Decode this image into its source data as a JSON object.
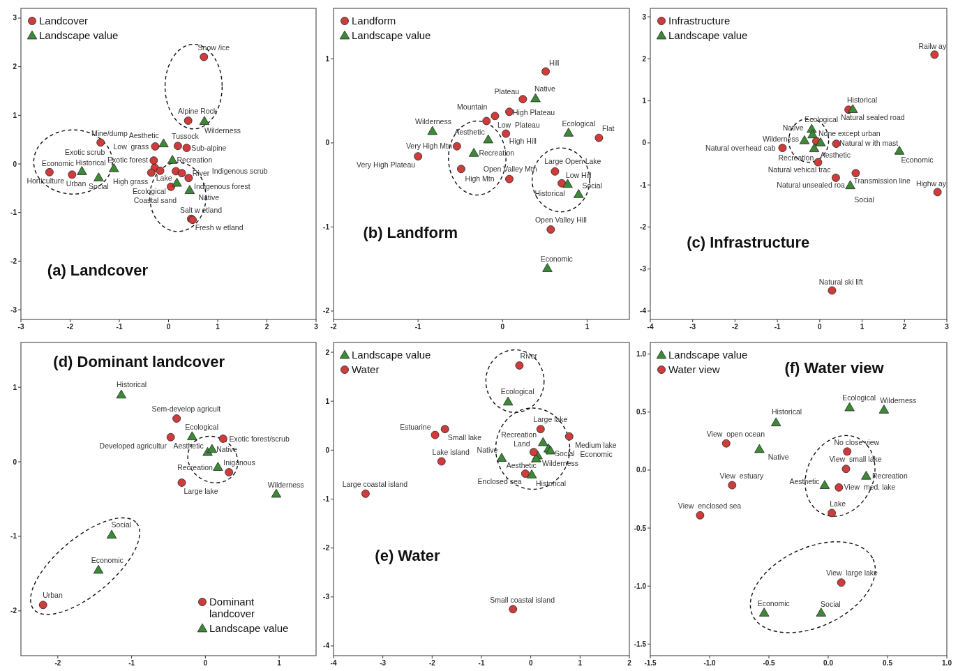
{
  "chart_data": [
    {
      "type": "scatter",
      "title": "(a) Landcover",
      "legend": "top left",
      "xlim": [
        -3,
        3
      ],
      "ylim": [
        -3.2,
        3.2
      ],
      "xticks": [
        -3,
        -2,
        -1,
        0,
        1,
        2,
        3
      ],
      "yticks": [
        -3,
        -2,
        -1,
        0,
        1,
        2,
        3
      ],
      "series": [
        {
          "name": "Landcover",
          "color": "#d03b3b",
          "marker": "circle",
          "x": [
            -2.42,
            -1.96,
            -1.38,
            -0.27,
            -0.3,
            0.19,
            0.37,
            0.72,
            0.4,
            -0.28,
            -0.35,
            -0.17,
            0.15,
            0.27,
            0.41,
            0.05,
            0.46,
            0.49
          ],
          "values": [
            -0.17,
            -0.22,
            0.44,
            0.36,
            0.07,
            0.37,
            0.33,
            2.2,
            0.89,
            -0.08,
            -0.18,
            -0.14,
            -0.15,
            -0.19,
            -0.29,
            -0.47,
            -1.13,
            -1.15
          ]
        },
        {
          "name": "Landscape value",
          "color": "#3c8a36",
          "marker": "triangle",
          "x": [
            -1.76,
            -1.42,
            -1.11,
            -0.1,
            0.08,
            0.17,
            0.43,
            0.73
          ],
          "values": [
            -0.15,
            -0.28,
            -0.09,
            0.42,
            0.08,
            -0.39,
            -0.54,
            0.88
          ]
        }
      ],
      "annotations": [
        {
          "text": "Snow /ice",
          "x": 0.72,
          "y": 2.2
        },
        {
          "text": "Alpine Rock",
          "x": 0.4,
          "y": 0.89
        },
        {
          "text": "Wilderness",
          "x": 0.73,
          "y": 0.88
        },
        {
          "text": "Mine/dump",
          "x": -1.38,
          "y": 0.44
        },
        {
          "text": "Aesthetic",
          "x": -0.1,
          "y": 0.42
        },
        {
          "text": "Tussock",
          "x": 0.19,
          "y": 0.37
        },
        {
          "text": "Low  grass",
          "x": -0.27,
          "y": 0.36
        },
        {
          "text": "Sub-alpine",
          "x": 0.37,
          "y": 0.33
        },
        "Exotic scrub",
        {
          "text": "Recreation",
          "x": 0.08,
          "y": 0.08
        },
        {
          "text": "Economic",
          "x": -1.76,
          "y": -0.15
        },
        {
          "text": "Historical",
          "x": -1.11,
          "y": -0.09
        },
        {
          "text": "Exotic forest",
          "x": -0.3,
          "y": 0.07
        },
        {
          "text": "River",
          "x": 0.27,
          "y": -0.19
        },
        "Indigenous scrub",
        {
          "text": "Horticulture",
          "x": -2.42,
          "y": -0.17
        },
        {
          "text": "Urban",
          "x": -1.96,
          "y": -0.22
        },
        {
          "text": "Social",
          "x": -1.42,
          "y": -0.28
        },
        {
          "text": "High grass",
          "x": -0.35,
          "y": -0.18
        },
        {
          "text": "Lake",
          "x": 0.15,
          "y": -0.15
        },
        "Indigenous forest",
        {
          "text": "Ecological",
          "x": 0.17,
          "y": -0.39
        },
        {
          "text": "Native",
          "x": 0.43,
          "y": -0.54
        },
        "Coastal sand",
        {
          "text": "Salt w etland",
          "x": 0.46,
          "y": -1.13
        },
        {
          "text": "Fresh w etland",
          "x": 0.49,
          "y": -1.15
        }
      ]
    },
    {
      "type": "scatter",
      "title": "(b) Landform",
      "legend": "top left",
      "xlim": [
        -2,
        1.5
      ],
      "ylim": [
        -2.1,
        1.6
      ],
      "xticks": [
        -2,
        -1,
        0,
        1
      ],
      "yticks": [
        -2,
        -1,
        0,
        1
      ],
      "series": [
        {
          "name": "Landform",
          "color": "#d03b3b",
          "marker": "circle",
          "x": [
            0.51,
            0.24,
            0.08,
            -0.19,
            -0.09,
            0.04,
            1.14,
            -0.54,
            -1.0,
            -0.49,
            0.08,
            0.62,
            0.7,
            0.57
          ],
          "values": [
            0.85,
            0.52,
            0.37,
            0.26,
            0.32,
            0.11,
            0.06,
            -0.04,
            -0.16,
            -0.31,
            -0.43,
            -0.34,
            -0.48,
            -1.03
          ]
        },
        {
          "name": "Landscape value",
          "color": "#3c8a36",
          "marker": "triangle",
          "x": [
            0.39,
            -0.83,
            -0.17,
            -0.34,
            0.78,
            0.77,
            0.9,
            0.53
          ],
          "values": [
            0.53,
            0.14,
            0.04,
            -0.12,
            0.12,
            -0.49,
            -0.61,
            -1.49
          ]
        }
      ],
      "annotations": [
        {
          "text": "Hill",
          "x": 0.51,
          "y": 0.85
        },
        {
          "text": "Plateau",
          "x": 0.24,
          "y": 0.52
        },
        {
          "text": "Native",
          "x": 0.39,
          "y": 0.53
        },
        {
          "text": "Mountain",
          "x": -0.19,
          "y": 0.26
        },
        {
          "text": "High Plateau",
          "x": 0.08,
          "y": 0.37
        },
        {
          "text": "Low  Plateau",
          "x": -0.09,
          "y": 0.32
        },
        {
          "text": "Wilderness",
          "x": -0.83,
          "y": 0.14
        },
        {
          "text": "Aesthetic",
          "x": -0.17,
          "y": 0.04
        },
        {
          "text": "Ecological",
          "x": 0.78,
          "y": 0.12
        },
        {
          "text": "Flat",
          "x": 1.14,
          "y": 0.06
        },
        {
          "text": "High Hill",
          "x": 0.04,
          "y": 0.11
        },
        {
          "text": "Very High Mtn",
          "x": -0.54,
          "y": -0.04
        },
        {
          "text": "Recreation",
          "x": -0.34,
          "y": -0.12
        },
        {
          "text": "Very High Plateau",
          "x": -1.0,
          "y": -0.16
        },
        {
          "text": "Open Valley Mtn",
          "x": 0.08,
          "y": -0.43
        },
        {
          "text": "High Mtn",
          "x": -0.49,
          "y": -0.31
        },
        {
          "text": "Large Open Lake",
          "x": 0.62,
          "y": -0.34
        },
        {
          "text": "Low Hill",
          "x": 0.7,
          "y": -0.48
        },
        {
          "text": "Social",
          "x": 0.9,
          "y": -0.61
        },
        {
          "text": "Historical",
          "x": 0.77,
          "y": -0.49
        },
        {
          "text": "Open Valley Hill",
          "x": 0.57,
          "y": -1.03
        },
        {
          "text": "Economic",
          "x": 0.53,
          "y": -1.49
        }
      ]
    },
    {
      "type": "scatter",
      "title": "(c) Infrastructure",
      "legend": "top left",
      "xlim": [
        -4,
        3
      ],
      "ylim": [
        -4.2,
        3.2
      ],
      "xticks": [
        -4,
        -3,
        -2,
        -1,
        0,
        1,
        2,
        3
      ],
      "yticks": [
        -4,
        -3,
        -2,
        -1,
        0,
        1,
        2,
        3
      ],
      "series": [
        {
          "name": "Infrastructure",
          "color": "#d03b3b",
          "marker": "circle",
          "x": [
            2.71,
            2.78,
            0.68,
            -0.08,
            0.39,
            -0.88,
            -0.04,
            0.38,
            0.85,
            0.29
          ],
          "values": [
            2.1,
            -1.17,
            0.79,
            0.04,
            -0.02,
            -0.12,
            -0.46,
            -0.83,
            -0.72,
            -3.51
          ]
        },
        {
          "name": "Landscape value",
          "color": "#3c8a36",
          "marker": "triangle",
          "x": [
            0.78,
            -0.19,
            -0.17,
            -0.36,
            0.02,
            -0.13,
            1.88,
            0.72
          ],
          "values": [
            0.8,
            0.33,
            0.2,
            0.06,
            0.01,
            -0.13,
            -0.19,
            -1.01
          ]
        }
      ],
      "annotations": [
        {
          "text": "Railw ay",
          "x": 2.71,
          "y": 2.1
        },
        {
          "text": "Historical",
          "x": 0.78,
          "y": 0.8
        },
        {
          "text": "Natural sealed road",
          "x": 0.68,
          "y": 0.79
        },
        {
          "text": "Ecological",
          "x": -0.19,
          "y": 0.33
        },
        {
          "text": "Native",
          "x": -0.17,
          "y": 0.2
        },
        {
          "text": "None except urban",
          "x": -0.08,
          "y": 0.04
        },
        {
          "text": "Wilderness",
          "x": -0.36,
          "y": 0.06
        },
        {
          "text": "Natural w ith mast",
          "x": 0.39,
          "y": -0.02
        },
        {
          "text": "Natural overhead cab",
          "x": -0.88,
          "y": -0.12
        },
        {
          "text": "Recreation",
          "x": -0.13,
          "y": -0.13
        },
        {
          "text": "Aesthetic",
          "x": 0.02,
          "y": 0.01
        },
        {
          "text": "Economic",
          "x": 1.88,
          "y": -0.19
        },
        {
          "text": "Natural vehical trac",
          "x": -0.04,
          "y": -0.46
        },
        {
          "text": "Transmission line",
          "x": 0.85,
          "y": -0.72
        },
        {
          "text": "Highw ay",
          "x": 2.78,
          "y": -1.17
        },
        {
          "text": "Natural unsealed roa",
          "x": 0.38,
          "y": -0.83
        },
        {
          "text": "Social",
          "x": 0.72,
          "y": -1.01
        },
        {
          "text": "Natural ski lift",
          "x": 0.29,
          "y": -3.51
        }
      ]
    },
    {
      "type": "scatter",
      "title": "(d) Dominant landcover",
      "legend": "bottom right",
      "xlim": [
        -2.5,
        1.5
      ],
      "ylim": [
        -2.6,
        1.6
      ],
      "xticks": [
        -2,
        -1,
        0,
        1
      ],
      "yticks": [
        -2,
        -1,
        0,
        1
      ],
      "series": [
        {
          "name": "Dominant landcover",
          "color": "#d03b3b",
          "marker": "circle",
          "x": [
            -0.39,
            -0.47,
            0.24,
            0.32,
            -0.32,
            -2.2
          ],
          "values": [
            0.58,
            0.33,
            0.31,
            -0.14,
            -0.28,
            -1.92
          ]
        },
        {
          "name": "Landscape value",
          "color": "#3c8a36",
          "marker": "triangle",
          "x": [
            -1.14,
            -0.18,
            0.03,
            0.09,
            0.17,
            0.96,
            -1.27,
            -1.45
          ],
          "values": [
            0.9,
            0.34,
            0.13,
            0.17,
            -0.07,
            -0.43,
            -0.98,
            -1.45
          ]
        }
      ],
      "annotations": [
        {
          "text": "Historical",
          "x": -1.14,
          "y": 0.9
        },
        {
          "text": "Sem-develop agricult",
          "x": -0.39,
          "y": 0.58
        },
        {
          "text": "Ecological",
          "x": -0.18,
          "y": 0.34
        },
        {
          "text": "Exotic forest/scrub",
          "x": 0.24,
          "y": 0.31
        },
        {
          "text": "Developed agricultur",
          "x": -0.47,
          "y": 0.33
        },
        {
          "text": "Aesthetic",
          "x": 0.03,
          "y": 0.13
        },
        {
          "text": "Native",
          "x": 0.09,
          "y": 0.17
        },
        {
          "text": "Iniganous",
          "x": 0.32,
          "y": -0.14
        },
        {
          "text": "Recreation",
          "x": 0.17,
          "y": -0.07
        },
        {
          "text": "Large lake",
          "x": -0.32,
          "y": -0.28
        },
        {
          "text": "Wilderness",
          "x": 0.96,
          "y": -0.43
        },
        {
          "text": "Social",
          "x": -1.27,
          "y": -0.98
        },
        {
          "text": "Economic",
          "x": -1.45,
          "y": -1.45
        },
        {
          "text": "Urban",
          "x": -2.2,
          "y": -1.92
        }
      ]
    },
    {
      "type": "scatter",
      "title": "(e) Water",
      "legend": "top left",
      "xlim": [
        -4,
        2
      ],
      "ylim": [
        -4.2,
        2.2
      ],
      "xticks": [
        -4,
        -3,
        -2,
        -1,
        0,
        1,
        2
      ],
      "yticks": [
        -4,
        -3,
        -2,
        -1,
        0,
        1,
        2
      ],
      "series": [
        {
          "name": "Landscape value",
          "color": "#3c8a36",
          "marker": "triangle",
          "x": [
            -0.46,
            -0.59,
            0.25,
            0.36,
            0.4,
            0.14,
            0.11,
            0.02
          ],
          "values": [
            0.99,
            -0.16,
            0.16,
            0.03,
            -0.01,
            -0.11,
            -0.17,
            -0.5
          ]
        },
        {
          "name": "Water",
          "color": "#d03b3b",
          "marker": "circle",
          "x": [
            -0.23,
            -1.74,
            -1.94,
            -1.81,
            -3.35,
            0.2,
            0.78,
            0.06,
            -0.11,
            -0.36
          ],
          "values": [
            1.73,
            0.43,
            0.31,
            -0.23,
            -0.89,
            0.43,
            0.28,
            -0.04,
            -0.48,
            -3.25
          ]
        }
      ],
      "annotations": [
        {
          "text": "River",
          "x": -0.23,
          "y": 1.73
        },
        {
          "text": "Ecological",
          "x": -0.46,
          "y": 0.99
        },
        {
          "text": "Estuarine",
          "x": -1.94,
          "y": 0.31
        },
        {
          "text": "Small lake",
          "x": -1.74,
          "y": 0.43
        },
        {
          "text": "Large lake",
          "x": 0.2,
          "y": 0.43
        },
        {
          "text": "Recreation",
          "x": 0.25,
          "y": 0.16
        },
        {
          "text": "Land",
          "x": 0.06,
          "y": -0.04
        },
        {
          "text": "Medium lake",
          "x": 0.78,
          "y": 0.28
        },
        "Economic",
        {
          "text": "Social",
          "x": 0.4,
          "y": -0.01
        },
        {
          "text": "Lake island",
          "x": -1.81,
          "y": -0.23
        },
        {
          "text": "Native",
          "x": -0.59,
          "y": -0.16
        },
        {
          "text": "Wilderness",
          "x": 0.14,
          "y": -0.11
        },
        {
          "text": "Aesthetic",
          "x": 0.11,
          "y": -0.17
        },
        {
          "text": "Enclosed sea",
          "x": -0.11,
          "y": -0.48
        },
        {
          "text": "Historical",
          "x": 0.02,
          "y": -0.5
        },
        {
          "text": "Large coastal island",
          "x": -3.35,
          "y": -0.89
        },
        {
          "text": "Small coastal island",
          "x": -0.36,
          "y": -3.25
        }
      ]
    },
    {
      "type": "scatter",
      "title": "(f) Water view",
      "legend": "top left",
      "xlim": [
        -1.5,
        1.0
      ],
      "ylim": [
        -1.6,
        1.1
      ],
      "xticks": [
        -1.5,
        {
          "value": -1,
          "label": "-1.0"
        },
        -0.5,
        {
          "value": 0,
          "label": "0.0"
        },
        0.5,
        {
          "value": 1,
          "label": "1.0"
        }
      ],
      "yticks": [
        -1.5,
        {
          "value": -1,
          "label": "-1.0"
        },
        -0.5,
        {
          "value": 0,
          "label": "0.0"
        },
        0.5,
        {
          "value": 1,
          "label": "1.0"
        }
      ],
      "series": [
        {
          "name": "Landscape value",
          "color": "#3c8a36",
          "marker": "triangle",
          "x": [
            0.18,
            0.47,
            -0.44,
            -0.58,
            0.32,
            -0.03,
            -0.54,
            -0.06
          ],
          "values": [
            0.54,
            0.52,
            0.41,
            0.18,
            -0.05,
            -0.13,
            -1.23,
            -1.23
          ]
        },
        {
          "name": "Water view",
          "color": "#d03b3b",
          "marker": "circle",
          "x": [
            -0.86,
            -0.81,
            -1.08,
            0.16,
            0.15,
            0.09,
            0.03,
            0.11
          ],
          "values": [
            0.23,
            -0.13,
            -0.39,
            0.16,
            0.01,
            -0.15,
            -0.37,
            -0.97
          ]
        }
      ],
      "annotations": [
        {
          "text": "Ecological",
          "x": 0.18,
          "y": 0.54
        },
        {
          "text": "Wilderness",
          "x": 0.47,
          "y": 0.52
        },
        {
          "text": "Historical",
          "x": -0.44,
          "y": 0.41
        },
        {
          "text": "View  open ocean",
          "x": -0.86,
          "y": 0.23
        },
        {
          "text": "No close view",
          "x": 0.16,
          "y": 0.16
        },
        {
          "text": "Native",
          "x": -0.58,
          "y": 0.18
        },
        {
          "text": "View  small lake",
          "x": 0.15,
          "y": 0.01
        },
        {
          "text": "View  estuary",
          "x": -0.81,
          "y": -0.13
        },
        {
          "text": "Recreation",
          "x": 0.32,
          "y": -0.05
        },
        {
          "text": "Aesthetic",
          "x": -0.03,
          "y": -0.13
        },
        {
          "text": "View  med. lake",
          "x": 0.09,
          "y": -0.15
        },
        {
          "text": "View  enclosed sea",
          "x": -1.08,
          "y": -0.39
        },
        {
          "text": "Lake",
          "x": 0.03,
          "y": -0.37
        },
        {
          "text": "View  large lake",
          "x": 0.11,
          "y": -0.97
        },
        {
          "text": "Economic",
          "x": -0.54,
          "y": -1.23
        },
        {
          "text": "Social",
          "x": -0.06,
          "y": -1.23
        }
      ]
    }
  ]
}
